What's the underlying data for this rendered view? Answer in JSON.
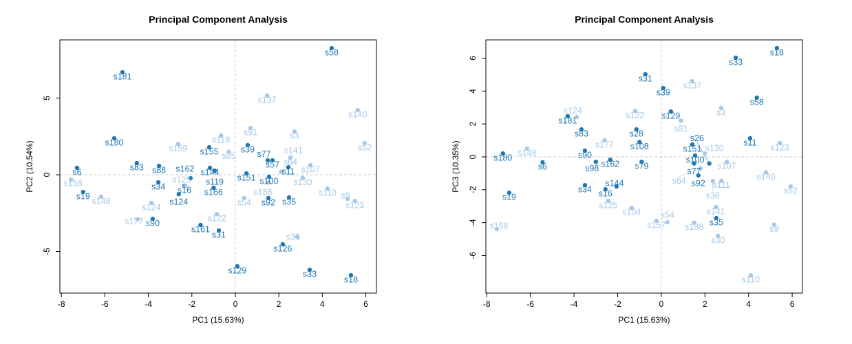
{
  "colors": {
    "dark": "#1f78b4",
    "light": "#a6c8e8",
    "frame": "#000000",
    "refline": "#c8c8c8"
  },
  "chart_data": [
    {
      "type": "scatter",
      "title": "Principal Component Analysis",
      "xlabel": "PC1 (15.63%)",
      "ylabel": "PC2 (10.54%)",
      "xlim": [
        -8.07,
        6.49
      ],
      "ylim": [
        -7.71,
        8.79
      ],
      "xticks": [
        -8,
        -6,
        -4,
        -2,
        0,
        2,
        4,
        6
      ],
      "yticks": [
        -5,
        0,
        5
      ],
      "reference_lines": {
        "x": 0,
        "y": 0
      },
      "points": [
        {
          "label": "s58",
          "x": 4.43,
          "y": 8.25,
          "c": "dark"
        },
        {
          "label": "s181",
          "x": -5.19,
          "y": 6.68,
          "c": "dark"
        },
        {
          "label": "s180",
          "x": -5.57,
          "y": 2.38,
          "c": "dark"
        },
        {
          "label": "s6",
          "x": -7.28,
          "y": 0.45,
          "c": "dark"
        },
        {
          "label": "s19",
          "x": -7.0,
          "y": -1.12,
          "c": "dark"
        },
        {
          "label": "s83",
          "x": -4.53,
          "y": 0.76,
          "c": "dark"
        },
        {
          "label": "s88",
          "x": -3.51,
          "y": 0.58,
          "c": "dark"
        },
        {
          "label": "s34",
          "x": -3.54,
          "y": -0.49,
          "c": "dark"
        },
        {
          "label": "s16",
          "x": -2.34,
          "y": -0.72,
          "c": "dark"
        },
        {
          "label": "s162",
          "x": -2.06,
          "y": -0.22,
          "c": "dark"
        },
        {
          "label": "s90",
          "x": -3.8,
          "y": -2.87,
          "c": "dark"
        },
        {
          "label": "s124",
          "x": -2.6,
          "y": -1.26,
          "c": "dark"
        },
        {
          "label": "s161",
          "x": -1.6,
          "y": -3.27,
          "c": "dark"
        },
        {
          "label": "s144",
          "x": -1.17,
          "y": 0.45,
          "c": "dark"
        },
        {
          "label": "s31",
          "x": -0.76,
          "y": -3.63,
          "c": "dark"
        },
        {
          "label": "s129",
          "x": 0.09,
          "y": -5.96,
          "c": "dark"
        },
        {
          "label": "s126",
          "x": 2.18,
          "y": -4.53,
          "c": "dark"
        },
        {
          "label": "s33",
          "x": 3.42,
          "y": -6.19,
          "c": "dark"
        },
        {
          "label": "s18",
          "x": 5.32,
          "y": -6.55,
          "c": "dark"
        },
        {
          "label": "s100",
          "x": 1.55,
          "y": -0.13,
          "c": "dark"
        },
        {
          "label": "s35",
          "x": 2.47,
          "y": -1.48,
          "c": "dark"
        },
        {
          "label": "s11",
          "x": 2.44,
          "y": 0.49,
          "c": "dark"
        },
        {
          "label": "s92",
          "x": 1.52,
          "y": -1.52,
          "c": "dark"
        },
        {
          "label": "s77",
          "x": 1.49,
          "y": 0.94,
          "c": "dark"
        },
        {
          "label": "s57",
          "x": 1.71,
          "y": 0.94,
          "c": "dark"
        },
        {
          "label": "s39",
          "x": 0.57,
          "y": 1.93,
          "c": "dark"
        },
        {
          "label": "s155",
          "x": -1.2,
          "y": 1.79,
          "c": "dark"
        },
        {
          "label": "s151",
          "x": 0.51,
          "y": 0.09,
          "c": "dark"
        },
        {
          "label": "s119",
          "x": -0.95,
          "y": 0.27,
          "c": "dark"
        },
        {
          "label": "s166",
          "x": -1.0,
          "y": -0.85,
          "c": "dark"
        },
        {
          "label": "s158",
          "x": -7.56,
          "y": -0.31,
          "c": "light"
        },
        {
          "label": "s148",
          "x": -6.17,
          "y": -1.43,
          "c": "light"
        },
        {
          "label": "s177",
          "x": -4.5,
          "y": -2.9,
          "c": "light"
        },
        {
          "label": "s124",
          "x": -3.86,
          "y": -1.84,
          "c": "light"
        },
        {
          "label": "s159",
          "x": -2.63,
          "y": 2.0,
          "c": "light"
        },
        {
          "label": "s137",
          "x": 1.46,
          "y": 5.16,
          "c": "light"
        },
        {
          "label": "s91",
          "x": 0.7,
          "y": 3.05,
          "c": "light"
        },
        {
          "label": "s118",
          "x": -0.66,
          "y": 2.56,
          "c": "light"
        },
        {
          "label": "s140",
          "x": 5.63,
          "y": 4.22,
          "c": "light"
        },
        {
          "label": "s52",
          "x": 5.95,
          "y": 2.06,
          "c": "light"
        },
        {
          "label": "s3",
          "x": 2.72,
          "y": 2.82,
          "c": "light"
        },
        {
          "label": "s107",
          "x": 3.45,
          "y": 0.63,
          "c": "light"
        },
        {
          "label": "s110",
          "x": 4.24,
          "y": -0.9,
          "c": "light"
        },
        {
          "label": "s9",
          "x": 5.16,
          "y": -1.57,
          "c": "light"
        },
        {
          "label": "s123",
          "x": 5.5,
          "y": -1.7,
          "c": "light"
        },
        {
          "label": "s36",
          "x": 2.85,
          "y": -4.04,
          "c": "light"
        },
        {
          "label": "s122",
          "x": -0.85,
          "y": -2.56,
          "c": "light"
        },
        {
          "label": "s54",
          "x": 0.41,
          "y": -1.52,
          "c": "light"
        },
        {
          "label": "s188",
          "x": 1.52,
          "y": -0.5,
          "c": "light"
        },
        {
          "label": "s64",
          "x": 2.53,
          "y": 1.12,
          "c": "light"
        },
        {
          "label": "s85",
          "x": -0.3,
          "y": 1.5,
          "c": "light"
        },
        {
          "label": "s125",
          "x": -2.3,
          "y": -0.75,
          "c": "light"
        },
        {
          "label": "s141",
          "x": 2.1,
          "y": 0.2,
          "c": "light"
        },
        {
          "label": "s130",
          "x": 3.1,
          "y": -0.2,
          "c": "light"
        }
      ]
    },
    {
      "type": "scatter",
      "title": "Principal Component Analysis",
      "xlabel": "PC1 (15.63%)",
      "ylabel": "PC3 (10.35%)",
      "xlim": [
        -8.04,
        6.47
      ],
      "ylim": [
        -8.28,
        7.11
      ],
      "xticks": [
        -8,
        -6,
        -4,
        -2,
        0,
        2,
        4,
        6
      ],
      "yticks": [
        -6,
        -4,
        -2,
        0,
        2,
        4,
        6
      ],
      "reference_lines": {
        "x": 0,
        "y": 0
      },
      "points": [
        {
          "label": "s18",
          "x": 5.3,
          "y": 6.61,
          "c": "dark"
        },
        {
          "label": "s33",
          "x": 3.41,
          "y": 6.03,
          "c": "dark"
        },
        {
          "label": "s58",
          "x": 4.38,
          "y": 3.6,
          "c": "dark"
        },
        {
          "label": "s31",
          "x": -0.73,
          "y": 5.02,
          "c": "dark"
        },
        {
          "label": "s129",
          "x": 0.44,
          "y": 2.76,
          "c": "dark"
        },
        {
          "label": "s181",
          "x": -4.29,
          "y": 2.47,
          "c": "dark"
        },
        {
          "label": "s83",
          "x": -3.66,
          "y": 1.67,
          "c": "dark"
        },
        {
          "label": "s180",
          "x": -7.26,
          "y": 0.21,
          "c": "dark"
        },
        {
          "label": "s6",
          "x": -5.44,
          "y": -0.33,
          "c": "dark"
        },
        {
          "label": "s19",
          "x": -6.97,
          "y": -2.18,
          "c": "dark"
        },
        {
          "label": "s90",
          "x": -3.5,
          "y": 0.38,
          "c": "dark"
        },
        {
          "label": "s98",
          "x": -3.0,
          "y": -0.3,
          "c": "dark"
        },
        {
          "label": "s34",
          "x": -3.5,
          "y": -1.72,
          "c": "dark"
        },
        {
          "label": "s16",
          "x": -2.56,
          "y": -1.97,
          "c": "dark"
        },
        {
          "label": "s144",
          "x": -2.05,
          "y": -1.8,
          "c": "dark"
        },
        {
          "label": "s162",
          "x": -2.34,
          "y": -0.17,
          "c": "dark"
        },
        {
          "label": "s151",
          "x": 1.42,
          "y": 0.75,
          "c": "dark"
        },
        {
          "label": "s11",
          "x": 4.07,
          "y": 1.13,
          "c": "dark"
        },
        {
          "label": "s100",
          "x": 1.55,
          "y": 0.08,
          "c": "dark"
        },
        {
          "label": "s26",
          "x": 2.2,
          "y": -0.4,
          "c": "dark"
        },
        {
          "label": "s77",
          "x": 1.5,
          "y": -0.4,
          "c": "dark"
        },
        {
          "label": "s92",
          "x": 1.7,
          "y": -1.13,
          "c": "dark"
        },
        {
          "label": "s35",
          "x": 2.52,
          "y": -3.72,
          "c": "dark"
        },
        {
          "label": "s28",
          "x": -1.14,
          "y": 1.67,
          "c": "dark"
        },
        {
          "label": "s79",
          "x": -0.9,
          "y": -0.3,
          "c": "dark"
        },
        {
          "label": "s39",
          "x": 0.09,
          "y": 4.18,
          "c": "dark"
        },
        {
          "label": "s108",
          "x": -1.0,
          "y": 0.9,
          "c": "dark"
        },
        {
          "label": "s137",
          "x": 1.42,
          "y": 4.6,
          "c": "light"
        },
        {
          "label": "s124",
          "x": -3.88,
          "y": 2.43,
          "c": "light"
        },
        {
          "label": "s177",
          "x": -2.6,
          "y": 1.0,
          "c": "light"
        },
        {
          "label": "s148",
          "x": -6.15,
          "y": 0.5,
          "c": "light"
        },
        {
          "label": "s158",
          "x": -7.54,
          "y": -4.39,
          "c": "light"
        },
        {
          "label": "s3",
          "x": 2.74,
          "y": 2.97,
          "c": "light"
        },
        {
          "label": "s123",
          "x": 5.43,
          "y": 0.84,
          "c": "light"
        },
        {
          "label": "s140",
          "x": 4.8,
          "y": -0.95,
          "c": "light"
        },
        {
          "label": "s52",
          "x": 5.93,
          "y": -1.8,
          "c": "light"
        },
        {
          "label": "s107",
          "x": 3.0,
          "y": -0.3,
          "c": "light"
        },
        {
          "label": "s110",
          "x": 4.1,
          "y": -7.2,
          "c": "light"
        },
        {
          "label": "s111",
          "x": 2.76,
          "y": -1.45,
          "c": "light"
        },
        {
          "label": "s9",
          "x": 5.17,
          "y": -4.12,
          "c": "light"
        },
        {
          "label": "s141",
          "x": 2.5,
          "y": -3.05,
          "c": "light"
        },
        {
          "label": "s188",
          "x": 1.5,
          "y": -4.0,
          "c": "light"
        },
        {
          "label": "s30",
          "x": 2.6,
          "y": -4.8,
          "c": "light"
        },
        {
          "label": "s157",
          "x": -0.22,
          "y": -3.88,
          "c": "light"
        },
        {
          "label": "s54",
          "x": 0.28,
          "y": -3.97,
          "c": "light"
        },
        {
          "label": "s104",
          "x": -1.36,
          "y": -3.1,
          "c": "light"
        },
        {
          "label": "s125",
          "x": -2.43,
          "y": -2.67,
          "c": "light"
        },
        {
          "label": "s36",
          "x": 2.36,
          "y": -1.47,
          "c": "light"
        },
        {
          "label": "s130",
          "x": 2.0,
          "y": 0.2,
          "c": "light"
        },
        {
          "label": "s64",
          "x": 1.8,
          "y": -0.7,
          "c": "light"
        },
        {
          "label": "s91",
          "x": 0.9,
          "y": 2.2,
          "c": "light"
        },
        {
          "label": "s122",
          "x": -1.2,
          "y": 2.8,
          "c": "light"
        }
      ]
    }
  ]
}
